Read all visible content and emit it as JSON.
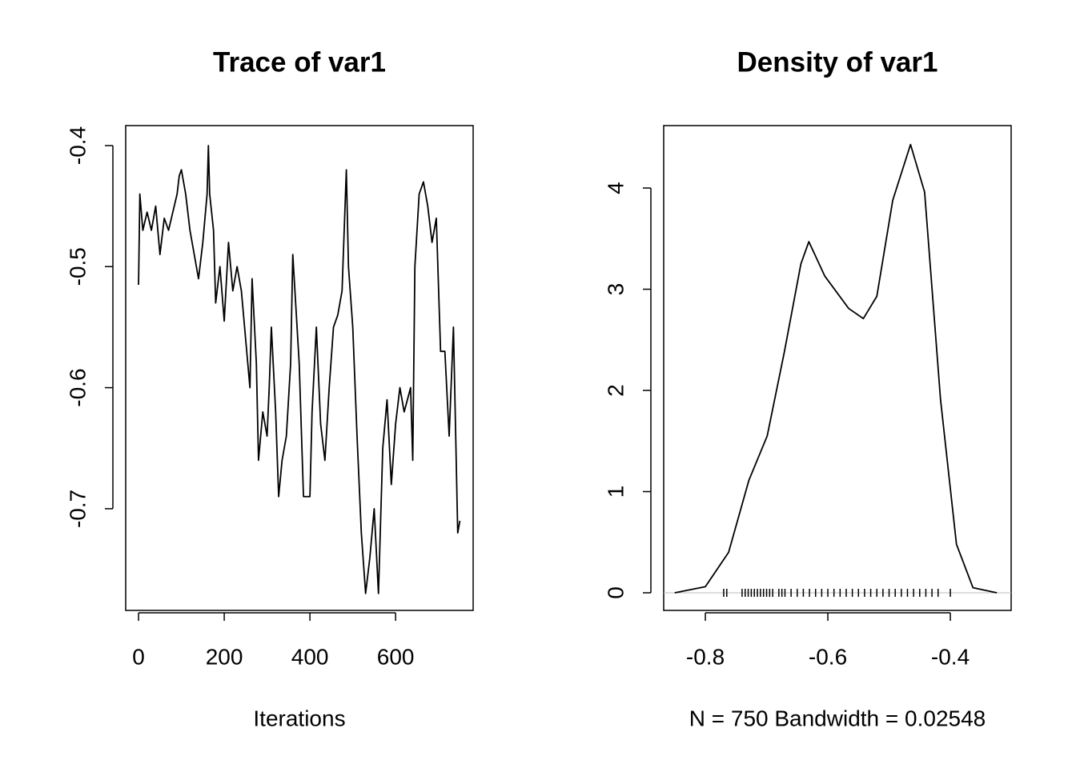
{
  "chart_data": [
    {
      "type": "line",
      "title": "Trace of var1",
      "x_label": "Iterations",
      "x": [
        0,
        3,
        10,
        20,
        30,
        40,
        50,
        60,
        70,
        80,
        90,
        95,
        100,
        110,
        120,
        130,
        140,
        150,
        160,
        163,
        166,
        175,
        180,
        190,
        200,
        210,
        220,
        230,
        240,
        250,
        260,
        265,
        275,
        280,
        290,
        300,
        305,
        310,
        320,
        327,
        335,
        345,
        355,
        360,
        370,
        375,
        385,
        400,
        405,
        415,
        425,
        435,
        445,
        455,
        465,
        475,
        485,
        490,
        500,
        510,
        520,
        530,
        540,
        550,
        560,
        570,
        580,
        590,
        600,
        610,
        620,
        635,
        640,
        645,
        655,
        665,
        675,
        685,
        695,
        705,
        715,
        725,
        735,
        745,
        750
      ],
      "values": [
        -0.515,
        -0.44,
        -0.47,
        -0.455,
        -0.47,
        -0.45,
        -0.49,
        -0.46,
        -0.47,
        -0.455,
        -0.44,
        -0.425,
        -0.42,
        -0.44,
        -0.47,
        -0.49,
        -0.51,
        -0.48,
        -0.44,
        -0.4,
        -0.44,
        -0.47,
        -0.53,
        -0.5,
        -0.545,
        -0.48,
        -0.52,
        -0.5,
        -0.52,
        -0.56,
        -0.6,
        -0.51,
        -0.58,
        -0.66,
        -0.62,
        -0.64,
        -0.6,
        -0.55,
        -0.62,
        -0.69,
        -0.66,
        -0.64,
        -0.58,
        -0.49,
        -0.55,
        -0.58,
        -0.69,
        -0.69,
        -0.62,
        -0.55,
        -0.63,
        -0.66,
        -0.6,
        -0.55,
        -0.54,
        -0.52,
        -0.42,
        -0.5,
        -0.55,
        -0.64,
        -0.72,
        -0.77,
        -0.74,
        -0.7,
        -0.77,
        -0.65,
        -0.61,
        -0.68,
        -0.63,
        -0.6,
        -0.62,
        -0.6,
        -0.66,
        -0.5,
        -0.44,
        -0.43,
        -0.45,
        -0.48,
        -0.46,
        -0.57,
        -0.57,
        -0.64,
        -0.55,
        -0.72,
        -0.71
      ],
      "color": "#000000",
      "xlim": [
        -30,
        781
      ],
      "ylim": [
        -0.784,
        -0.3835
      ],
      "xticks": [
        0,
        200,
        400,
        600
      ],
      "yticks": [
        -0.4,
        -0.5,
        -0.6,
        -0.7
      ]
    },
    {
      "type": "density",
      "title": "Density of var1",
      "x_label": "N = 750   Bandwidth = 0.02548",
      "x": [
        -0.85,
        -0.8,
        -0.762,
        -0.729,
        -0.699,
        -0.671,
        -0.644,
        -0.631,
        -0.605,
        -0.566,
        -0.542,
        -0.52,
        -0.494,
        -0.465,
        -0.442,
        -0.416,
        -0.39,
        -0.363,
        -0.324
      ],
      "values": [
        0,
        0.06,
        0.4,
        1.11,
        1.55,
        2.38,
        3.25,
        3.47,
        3.13,
        2.81,
        2.71,
        2.93,
        3.88,
        4.43,
        3.96,
        1.91,
        0.48,
        0.05,
        0
      ],
      "rug": [
        -0.77,
        -0.765,
        -0.74,
        -0.735,
        -0.73,
        -0.725,
        -0.72,
        -0.715,
        -0.71,
        -0.705,
        -0.7,
        -0.695,
        -0.69,
        -0.68,
        -0.675,
        -0.67,
        -0.66,
        -0.65,
        -0.64,
        -0.63,
        -0.62,
        -0.61,
        -0.6,
        -0.59,
        -0.58,
        -0.57,
        -0.56,
        -0.55,
        -0.54,
        -0.53,
        -0.52,
        -0.51,
        -0.5,
        -0.49,
        -0.48,
        -0.47,
        -0.46,
        -0.45,
        -0.44,
        -0.43,
        -0.42,
        -0.4
      ],
      "color": "#000000",
      "xlim": [
        -0.868,
        -0.3007
      ],
      "ylim": [
        -0.174,
        4.617
      ],
      "xticks": [
        -0.8,
        -0.6,
        -0.4
      ],
      "yticks": [
        0,
        1,
        2,
        3,
        4
      ]
    }
  ]
}
